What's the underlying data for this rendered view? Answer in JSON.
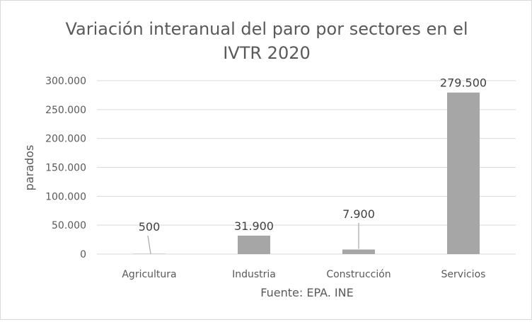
{
  "chart_data": {
    "type": "bar",
    "title_lines": [
      "Variación interanual del paro por sectores en el",
      "IVTR 2020"
    ],
    "categories": [
      "Agricultura",
      "Industria",
      "Construcción",
      "Servicios"
    ],
    "values": [
      500,
      31900,
      7900,
      279500
    ],
    "data_labels": [
      "500",
      "31.900",
      "7.900",
      "279.500"
    ],
    "xlabel": "Fuente: EPA. INE",
    "ylabel": "parados",
    "ylim": [
      0,
      300000
    ],
    "yticks": [
      0,
      50000,
      100000,
      150000,
      200000,
      250000,
      300000
    ],
    "ytick_labels": [
      "0",
      "50.000",
      "100.000",
      "150.000",
      "200.000",
      "250.000",
      "300.000"
    ],
    "grid": true,
    "legend": "none",
    "bar_color": "#a6a6a6"
  }
}
